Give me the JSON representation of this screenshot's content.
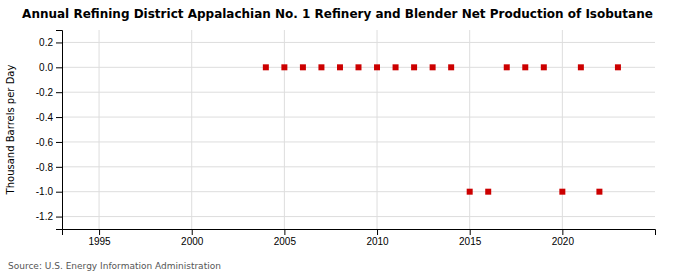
{
  "chart_data": {
    "type": "scatter",
    "title": "Annual Refining District Appalachian No. 1 Refinery and Blender Net Production of Isobutane",
    "y_label": "Thousand Barrels per Day",
    "source": "Source: U.S. Energy Information Administration",
    "x": [
      2004,
      2005,
      2006,
      2007,
      2008,
      2009,
      2010,
      2011,
      2012,
      2013,
      2014,
      2015,
      2016,
      2017,
      2018,
      2019,
      2020,
      2021,
      2022,
      2023
    ],
    "values": [
      0.0,
      0.0,
      0.0,
      0.0,
      0.0,
      0.0,
      0.0,
      0.0,
      0.0,
      0.0,
      0.0,
      -1.0,
      -1.0,
      0.0,
      0.0,
      0.0,
      -1.0,
      0.0,
      -1.0,
      0.0
    ],
    "color": "#cc0000",
    "marker": "square",
    "xlim": [
      1993,
      2025
    ],
    "xticks": [
      1995,
      2000,
      2005,
      2010,
      2015,
      2020
    ],
    "ylim": [
      -1.3,
      0.3
    ],
    "yticks": [
      0.2,
      {
        "value": 0,
        "label": "0.0"
      },
      -0.2,
      -0.4,
      -0.6,
      -0.8,
      {
        "value": -1,
        "label": "-1.0"
      },
      -1.2
    ],
    "grid": true
  }
}
